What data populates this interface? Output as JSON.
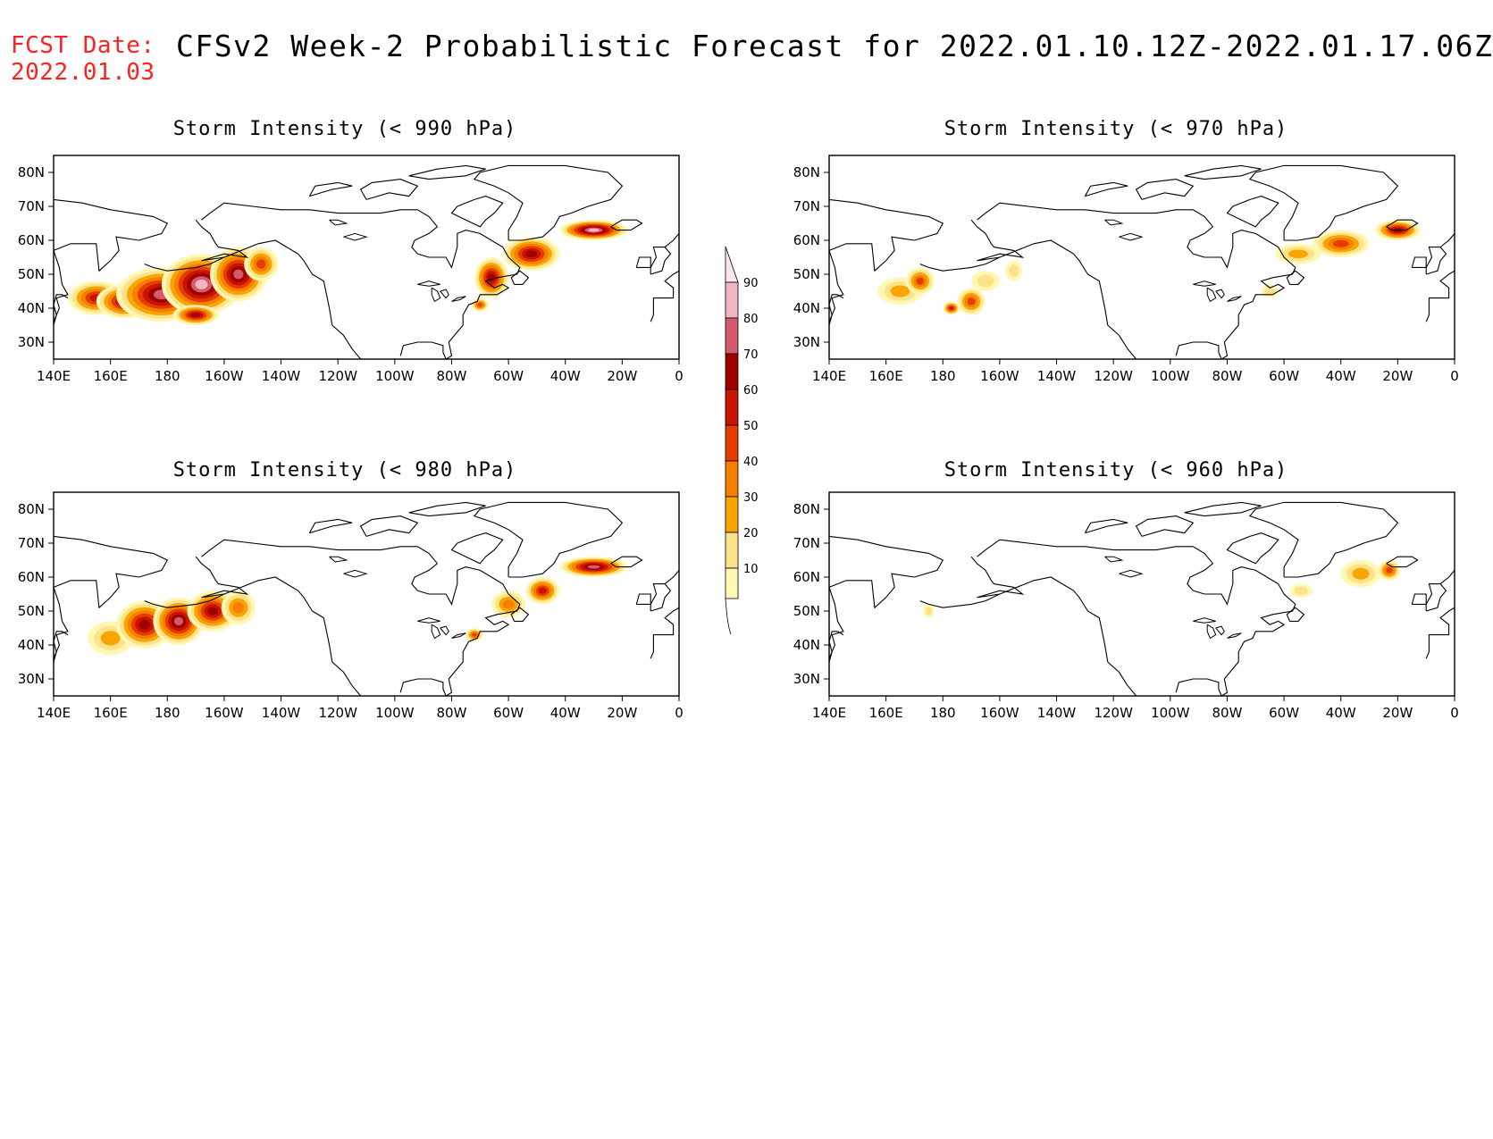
{
  "header": {
    "fcst_label": "FCST Date:",
    "fcst_date": "2022.01.03",
    "title": "CFSv2 Week-2 Probabilistic Forecast for 2022.01.10.12Z-2022.01.17.06Z"
  },
  "axes": {
    "x_labels": [
      "140E",
      "160E",
      "180",
      "160W",
      "140W",
      "120W",
      "100W",
      "80W",
      "60W",
      "40W",
      "20W",
      "0"
    ],
    "y_labels": [
      "30N",
      "40N",
      "50N",
      "60N",
      "70N",
      "80N"
    ],
    "x_range_lon": [
      140,
      360
    ],
    "y_range_lat": [
      25,
      85
    ]
  },
  "colorbar": {
    "levels": [
      10,
      20,
      30,
      40,
      50,
      60,
      70,
      80,
      90
    ],
    "colors": [
      "#fff7b2",
      "#fde28c",
      "#f9a500",
      "#f57f00",
      "#e63c00",
      "#c81400",
      "#a00000",
      "#d45a6e",
      "#f2b6c2",
      "#fde6ea"
    ]
  },
  "panels": [
    {
      "title": "Storm Intensity (< 990 hPa)",
      "blobs": [
        {
          "lon": 155,
          "lat": 43,
          "rx": 10,
          "ry": 5,
          "p": 60
        },
        {
          "lon": 165,
          "lat": 42,
          "rx": 10,
          "ry": 5,
          "p": 75
        },
        {
          "lon": 178,
          "lat": 44,
          "rx": 16,
          "ry": 8,
          "p": 85
        },
        {
          "lon": 192,
          "lat": 47,
          "rx": 14,
          "ry": 9,
          "p": 95
        },
        {
          "lon": 205,
          "lat": 50,
          "rx": 10,
          "ry": 8,
          "p": 85
        },
        {
          "lon": 213,
          "lat": 53,
          "rx": 6,
          "ry": 5,
          "p": 55
        },
        {
          "lon": 190,
          "lat": 38,
          "rx": 8,
          "ry": 3,
          "p": 75
        },
        {
          "lon": 294,
          "lat": 49,
          "rx": 6,
          "ry": 6,
          "p": 70
        },
        {
          "lon": 308,
          "lat": 56,
          "rx": 10,
          "ry": 5,
          "p": 75
        },
        {
          "lon": 330,
          "lat": 63,
          "rx": 12,
          "ry": 3,
          "p": 90
        },
        {
          "lon": 290,
          "lat": 41,
          "rx": 3,
          "ry": 2,
          "p": 55
        }
      ]
    },
    {
      "title": "Storm Intensity (< 970 hPa)",
      "blobs": [
        {
          "lon": 165,
          "lat": 45,
          "rx": 8,
          "ry": 4,
          "p": 30
        },
        {
          "lon": 172,
          "lat": 48,
          "rx": 5,
          "ry": 4,
          "p": 55
        },
        {
          "lon": 183,
          "lat": 40,
          "rx": 3,
          "ry": 2,
          "p": 60
        },
        {
          "lon": 190,
          "lat": 42,
          "rx": 5,
          "ry": 4,
          "p": 50
        },
        {
          "lon": 195,
          "lat": 48,
          "rx": 5,
          "ry": 3,
          "p": 20
        },
        {
          "lon": 205,
          "lat": 51,
          "rx": 3,
          "ry": 3,
          "p": 25
        },
        {
          "lon": 305,
          "lat": 56,
          "rx": 8,
          "ry": 3,
          "p": 35
        },
        {
          "lon": 320,
          "lat": 59,
          "rx": 10,
          "ry": 4,
          "p": 50
        },
        {
          "lon": 340,
          "lat": 63,
          "rx": 8,
          "ry": 3,
          "p": 75
        },
        {
          "lon": 295,
          "lat": 45,
          "rx": 3,
          "ry": 2,
          "p": 25
        }
      ]
    },
    {
      "title": "Storm Intensity (< 980 hPa)",
      "blobs": [
        {
          "lon": 160,
          "lat": 42,
          "rx": 8,
          "ry": 5,
          "p": 35
        },
        {
          "lon": 172,
          "lat": 46,
          "rx": 10,
          "ry": 7,
          "p": 70
        },
        {
          "lon": 184,
          "lat": 47,
          "rx": 9,
          "ry": 7,
          "p": 80
        },
        {
          "lon": 196,
          "lat": 50,
          "rx": 9,
          "ry": 6,
          "p": 75
        },
        {
          "lon": 205,
          "lat": 51,
          "rx": 6,
          "ry": 5,
          "p": 45
        },
        {
          "lon": 300,
          "lat": 52,
          "rx": 6,
          "ry": 4,
          "p": 45
        },
        {
          "lon": 312,
          "lat": 56,
          "rx": 6,
          "ry": 4,
          "p": 65
        },
        {
          "lon": 330,
          "lat": 63,
          "rx": 12,
          "ry": 3,
          "p": 85
        },
        {
          "lon": 288,
          "lat": 43,
          "rx": 3,
          "ry": 2,
          "p": 50
        }
      ]
    },
    {
      "title": "Storm Intensity (< 960 hPa)",
      "blobs": [
        {
          "lon": 175,
          "lat": 50,
          "rx": 2,
          "ry": 2,
          "p": 25
        },
        {
          "lon": 306,
          "lat": 56,
          "rx": 4,
          "ry": 2,
          "p": 20
        },
        {
          "lon": 327,
          "lat": 61,
          "rx": 7,
          "ry": 4,
          "p": 35
        },
        {
          "lon": 337,
          "lat": 62,
          "rx": 4,
          "ry": 3,
          "p": 55
        }
      ]
    }
  ]
}
